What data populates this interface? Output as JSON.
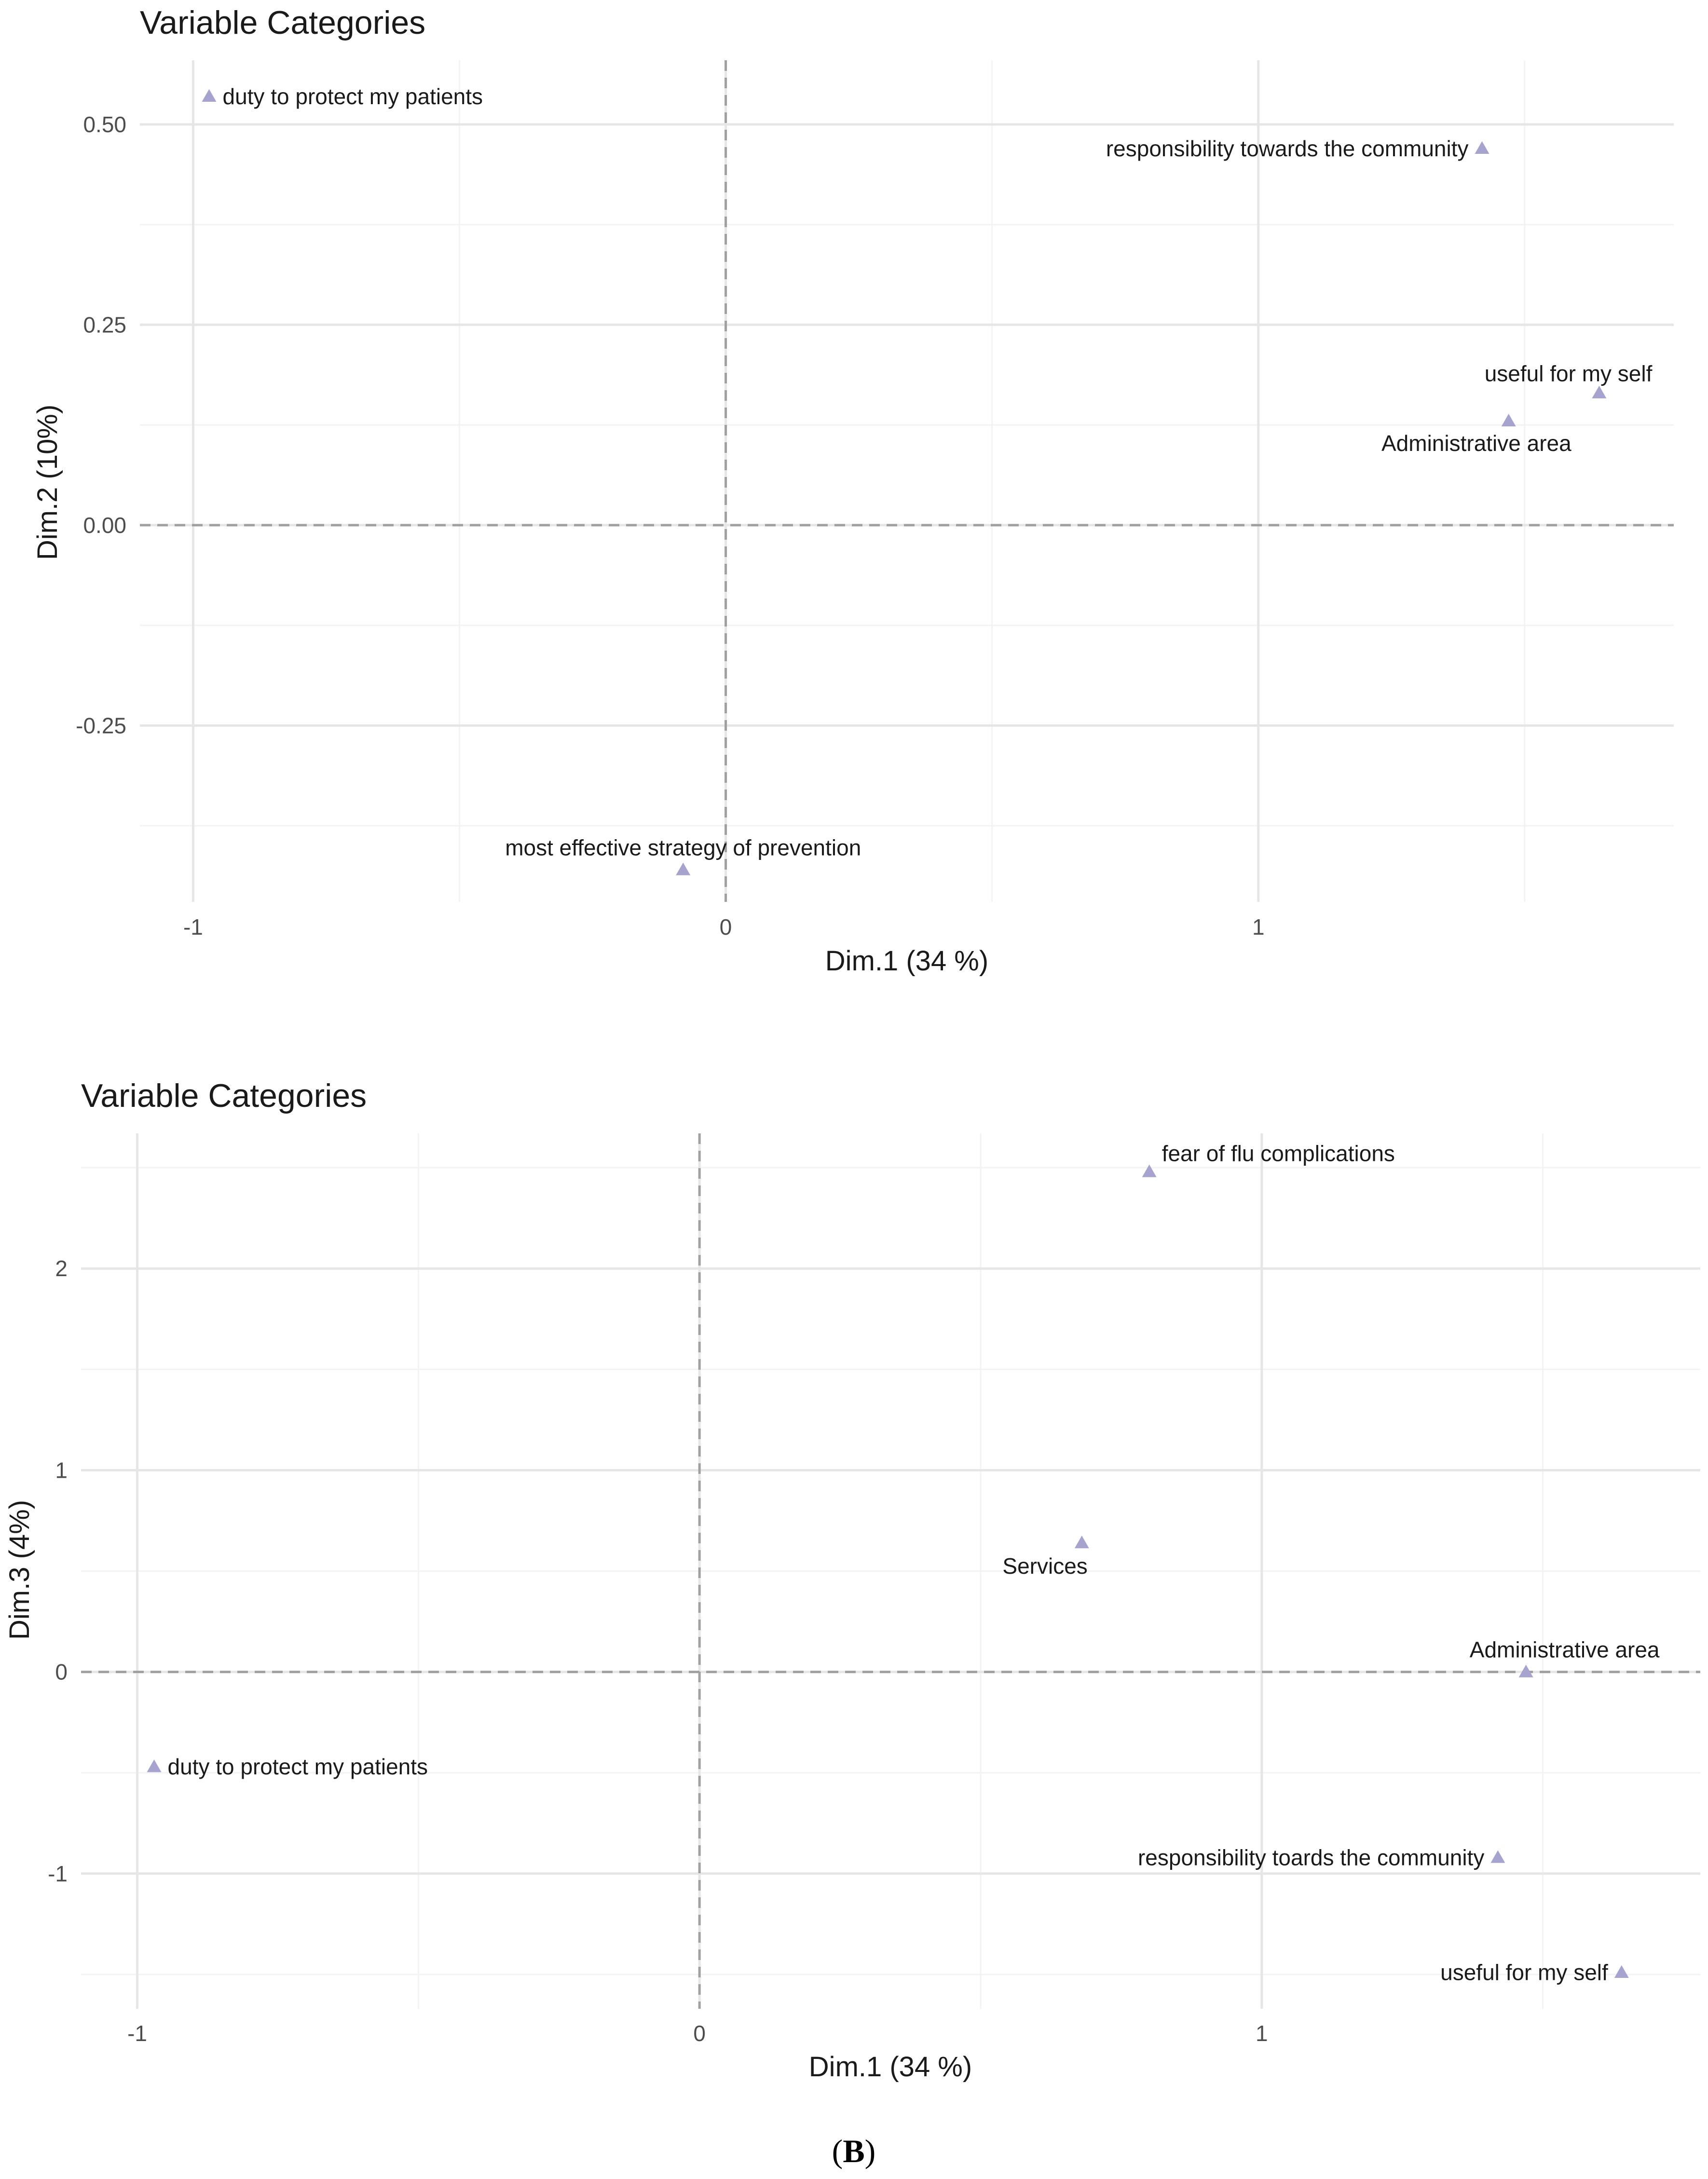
{
  "colors": {
    "point": "#a7a3cf",
    "grid_major": "#e6e6e6",
    "grid_minor": "#f3f3f3",
    "ref_line": "#a0a0a0"
  },
  "panel_label": {
    "open": "(",
    "letter": "B",
    "close": ")"
  },
  "chart_data": [
    {
      "type": "scatter",
      "title": "Variable Categories",
      "xlabel": "Dim.1 (34 %)",
      "ylabel": "Dim.2 (10%)",
      "xlim": [
        -1.1,
        1.78
      ],
      "ylim": [
        -0.47,
        0.58
      ],
      "xticks": [
        -1,
        0,
        1
      ],
      "xtick_labels": [
        "-1",
        "0",
        "1"
      ],
      "yticks": [
        -0.25,
        0,
        0.25,
        0.5
      ],
      "ytick_labels": [
        "-0.25",
        "0.00",
        "0.25",
        "0.50"
      ],
      "grid": true,
      "reference_lines": {
        "x": 0,
        "y": 0
      },
      "marker": "triangle",
      "points": [
        {
          "label": "duty to protect my patients",
          "x": -0.97,
          "y": 0.535,
          "label_pos": "right"
        },
        {
          "label": "responsibility towards the community",
          "x": 1.42,
          "y": 0.47,
          "label_pos": "left"
        },
        {
          "label": "useful for my self",
          "x": 1.64,
          "y": 0.165,
          "label_pos": "above-left"
        },
        {
          "label": "Administrative area",
          "x": 1.47,
          "y": 0.13,
          "label_pos": "below-left"
        },
        {
          "label": "most effective strategy of prevention",
          "x": -0.08,
          "y": -0.43,
          "label_pos": "above"
        }
      ]
    },
    {
      "type": "scatter",
      "title": "Variable Categories",
      "xlabel": "Dim.1 (34 %)",
      "ylabel": "Dim.3 (4%)",
      "xlim": [
        -1.1,
        1.78
      ],
      "ylim": [
        -1.67,
        2.67
      ],
      "xticks": [
        -1,
        0,
        1
      ],
      "xtick_labels": [
        "-1",
        "0",
        "1"
      ],
      "yticks": [
        -1,
        0,
        1,
        2
      ],
      "ytick_labels": [
        "-1",
        "0",
        "1",
        "2"
      ],
      "grid": true,
      "reference_lines": {
        "x": 0,
        "y": 0
      },
      "marker": "triangle",
      "points": [
        {
          "label": "fear of flu complications",
          "x": 0.8,
          "y": 2.48,
          "label_pos": "above-right"
        },
        {
          "label": "Services",
          "x": 0.68,
          "y": 0.64,
          "label_pos": "below-left"
        },
        {
          "label": "Administrative area",
          "x": 1.47,
          "y": 0.0,
          "label_pos": "above"
        },
        {
          "label": "duty to protect my patients",
          "x": -0.97,
          "y": -0.47,
          "label_pos": "right"
        },
        {
          "label": "responsibility toards the community",
          "x": 1.42,
          "y": -0.92,
          "label_pos": "left"
        },
        {
          "label": "useful for my self",
          "x": 1.64,
          "y": -1.49,
          "label_pos": "left"
        }
      ]
    }
  ]
}
